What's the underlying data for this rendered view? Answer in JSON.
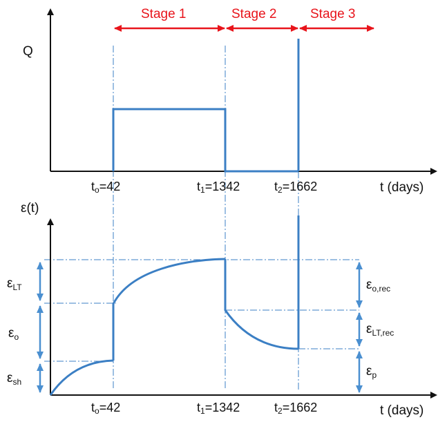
{
  "stages": [
    "Stage 1",
    "Stage 2",
    "Stage 3"
  ],
  "top_plot": {
    "y_label": "Q",
    "x_label": "t (days)"
  },
  "bottom_plot": {
    "y_label": "ε(t)",
    "x_label": "t (days)"
  },
  "ticks": [
    {
      "sym": "t",
      "sub": "o",
      "val": "=42"
    },
    {
      "sym": "t",
      "sub": "1",
      "val": "=1342"
    },
    {
      "sym": "t",
      "sub": "2",
      "val": "=1662"
    }
  ],
  "strain_labels": {
    "lt": {
      "sym": "ε",
      "sub": "LT"
    },
    "o": {
      "sym": "ε",
      "sub": "o"
    },
    "sh": {
      "sym": "ε",
      "sub": "sh"
    },
    "o_rec": {
      "sym": "ε",
      "sub": "o,rec"
    },
    "lt_rec": {
      "sym": "ε",
      "sub": "LT,rec"
    },
    "p": {
      "sym": "ε",
      "sub": "p"
    }
  },
  "colors": {
    "curve": "#3b7fc4",
    "stage_arrow": "#e8141b",
    "axis": "#111111",
    "dim_arrow": "#4a8fd0",
    "guide": "#3b7fc4"
  }
}
